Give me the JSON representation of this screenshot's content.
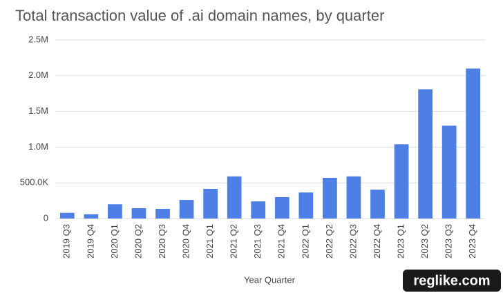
{
  "chart_data": {
    "type": "bar",
    "title": "Total transaction value of .ai domain names, by quarter",
    "x_label": "Year Quarter",
    "watermark": "reglike.com",
    "categories": [
      "2019 Q3",
      "2019 Q4",
      "2020 Q1",
      "2020 Q2",
      "2020 Q3",
      "2020 Q4",
      "2021 Q1",
      "2021 Q2",
      "2021 Q3",
      "2021 Q4",
      "2022 Q1",
      "2022 Q2",
      "2022 Q3",
      "2022 Q4",
      "2023 Q1",
      "2023 Q2",
      "2023 Q3",
      "2023 Q4"
    ],
    "values": [
      80000,
      60000,
      200000,
      145000,
      135000,
      260000,
      415000,
      590000,
      240000,
      300000,
      365000,
      570000,
      590000,
      405000,
      1040000,
      1810000,
      1300000,
      2100000
    ],
    "color": "#4d7fe5",
    "ylim": [
      0,
      2500000
    ],
    "yticks": [
      0,
      {
        "value": 500000,
        "label": "500.0K"
      },
      {
        "value": 1000000,
        "label": "1.0M"
      },
      {
        "value": 1500000,
        "label": "1.5M"
      },
      {
        "value": 2000000,
        "label": "2.0M"
      },
      {
        "value": 2500000,
        "label": "2.5M"
      }
    ],
    "grid": true
  }
}
